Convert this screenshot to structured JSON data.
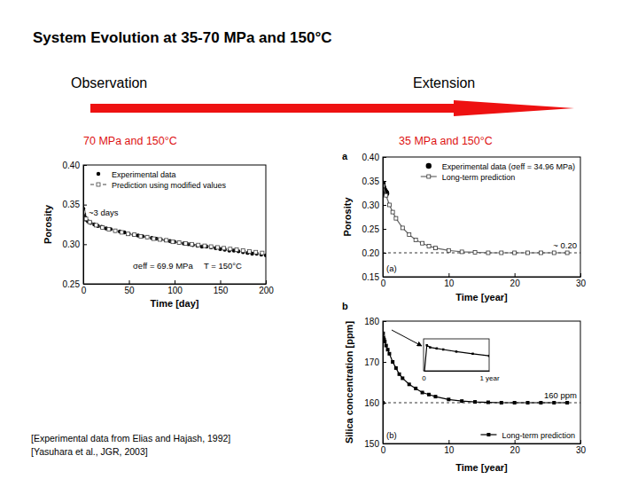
{
  "slide": {
    "title": "System Evolution at 35-70 MPa and 150°C",
    "observation": "Observation",
    "extension": "Extension",
    "references": [
      "[Experimental data from Elias and Hajash, 1992]",
      "[Yasuhara et al., JGR, 2003]"
    ]
  },
  "chart_data": [
    {
      "type": "line",
      "title": "70 MPa and 150°C",
      "x_label": "Time [day]",
      "y_label": "Porosity",
      "xlim": [
        0,
        200
      ],
      "ylim": [
        0.25,
        0.4
      ],
      "xticks": [
        0,
        50,
        100,
        150,
        200
      ],
      "yticks": [
        0.25,
        {
          "value": 0.3,
          "label": "0.30"
        },
        0.35,
        {
          "value": 0.4,
          "label": "0.40"
        }
      ],
      "grid": false,
      "legend": "top-left",
      "annotations": [
        "~3 days",
        "σeff = 69.9 MPa",
        "T = 150°C"
      ],
      "series": [
        {
          "name": "Experimental data",
          "color": "#000000",
          "marker": "circle",
          "line_style": "none",
          "x": [
            0,
            1,
            2,
            3,
            5,
            8,
            12,
            16,
            20,
            25,
            30,
            35,
            40,
            45,
            50,
            55,
            60,
            65,
            70,
            75,
            80,
            85,
            90,
            95,
            100,
            105,
            110,
            115,
            120,
            125,
            130,
            135,
            140,
            145,
            150,
            155,
            160,
            165,
            170,
            175,
            180,
            185,
            190,
            195,
            200
          ],
          "values": [
            0.345,
            0.338,
            0.334,
            0.331,
            0.329,
            0.327,
            0.325,
            0.323,
            0.322,
            0.32,
            0.319,
            0.317,
            0.316,
            0.315,
            0.313,
            0.312,
            0.311,
            0.31,
            0.309,
            0.308,
            0.307,
            0.306,
            0.305,
            0.304,
            0.303,
            0.302,
            0.301,
            0.3,
            0.299,
            0.298,
            0.297,
            0.297,
            0.296,
            0.295,
            0.294,
            0.293,
            0.292,
            0.292,
            0.291,
            0.29,
            0.289,
            0.288,
            0.288,
            0.287,
            0.286
          ]
        },
        {
          "name": "Prediction using modified values",
          "color": "#444444",
          "marker": "square-open",
          "line_style": "dashed",
          "x": [
            0,
            3,
            7,
            14,
            21,
            28,
            35,
            42,
            49,
            56,
            63,
            70,
            77,
            84,
            91,
            98,
            105,
            112,
            119,
            126,
            133,
            140,
            147,
            154,
            161,
            168,
            175,
            182,
            189,
            196
          ],
          "values": [
            0.34,
            0.332,
            0.328,
            0.324,
            0.321,
            0.319,
            0.317,
            0.315,
            0.313,
            0.312,
            0.31,
            0.309,
            0.307,
            0.306,
            0.305,
            0.303,
            0.302,
            0.301,
            0.3,
            0.299,
            0.298,
            0.297,
            0.296,
            0.295,
            0.294,
            0.293,
            0.292,
            0.291,
            0.29,
            0.289
          ]
        }
      ]
    },
    {
      "type": "line",
      "title": "35 MPa and 150°C",
      "panel_label": "a",
      "x_label": "Time [year]",
      "y_label": "Porosity",
      "xlim": [
        0,
        30
      ],
      "ylim": [
        0.15,
        0.4
      ],
      "xticks": [
        0,
        10,
        20,
        30
      ],
      "yticks": [
        0.15,
        {
          "value": 0.2,
          "label": "0.20"
        },
        0.25,
        {
          "value": 0.3,
          "label": "0.30"
        },
        0.35,
        {
          "value": 0.4,
          "label": "0.40"
        }
      ],
      "grid": false,
      "legend": "top-right",
      "annotations": [
        "(a)"
      ],
      "ref_line": {
        "value": 0.2,
        "label": "~ 0.20"
      },
      "series": [
        {
          "name": "Experimental data (σeff = 34.96 MPa)",
          "color": "#000000",
          "marker": "circle",
          "line_style": "none",
          "x": [
            0,
            0.05,
            0.1,
            0.15,
            0.2,
            0.25,
            0.3,
            0.35,
            0.4,
            0.45,
            0.5,
            0.55
          ],
          "values": [
            0.345,
            0.338,
            0.335,
            0.333,
            0.331,
            0.33,
            0.329,
            0.328,
            0.327,
            0.326,
            0.325,
            0.324
          ]
        },
        {
          "name": "Long-term prediction",
          "color": "#666666",
          "marker": "square-open",
          "line_style": "solid",
          "x": [
            0,
            0.5,
            1,
            1.5,
            2,
            3,
            4,
            5,
            6,
            7,
            8,
            10,
            12,
            14,
            16,
            18,
            20,
            22,
            24,
            26,
            28
          ],
          "values": [
            0.34,
            0.32,
            0.3,
            0.285,
            0.272,
            0.252,
            0.238,
            0.227,
            0.22,
            0.214,
            0.21,
            0.205,
            0.202,
            0.201,
            0.2,
            0.2,
            0.2,
            0.2,
            0.2,
            0.2,
            0.2
          ]
        }
      ]
    },
    {
      "type": "line",
      "panel_label": "b",
      "x_label": "Time [year]",
      "y_label": "Silica concentration [ppm]",
      "xlim": [
        0,
        30
      ],
      "ylim": [
        150,
        180
      ],
      "xticks": [
        0,
        10,
        20,
        30
      ],
      "yticks": [
        150,
        160,
        170,
        180
      ],
      "grid": false,
      "legend": "bottom-right",
      "annotations": [
        "(b)"
      ],
      "ref_line": {
        "value": 160,
        "label": "160 ppm"
      },
      "inset": {
        "xlim": [
          0,
          1
        ],
        "ylim": [
          165,
          180
        ],
        "xticks": [
          0,
          {
            "value": 1,
            "label": "1 year"
          }
        ]
      },
      "series": [
        {
          "name": "Long-term prediction",
          "color": "#000000",
          "marker": "square",
          "line_style": "solid",
          "x": [
            0,
            0.05,
            0.1,
            0.2,
            0.3,
            0.5,
            0.75,
            1,
            1.5,
            2,
            2.5,
            3,
            4,
            5,
            6,
            7,
            8,
            10,
            12,
            14,
            16,
            18,
            20,
            22,
            24,
            26,
            28
          ],
          "values": [
            160,
            177,
            176,
            175.5,
            175,
            174,
            173,
            172,
            170,
            168.5,
            167,
            166,
            164.5,
            163.5,
            162.5,
            162,
            161.5,
            160.8,
            160.4,
            160.2,
            160.1,
            160,
            160,
            160,
            160,
            160,
            160
          ]
        }
      ]
    }
  ]
}
